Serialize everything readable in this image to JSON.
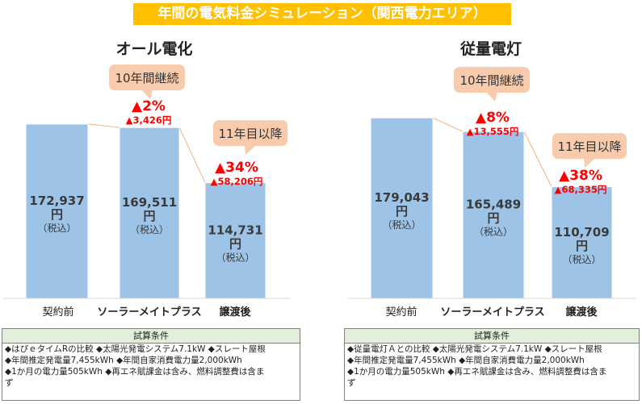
{
  "title": "年間の電気料金シミュレーション（関西電力エリア）",
  "colors": {
    "bar": "#9dc3e6",
    "bar_stroke": "#ffffff",
    "callout": "#f8cbad",
    "accent": "#ff0000",
    "title_bg": "#ffc000",
    "cond_head": "#e2efda"
  },
  "chart_data": [
    {
      "type": "bar",
      "title": "オール電化",
      "categories": [
        "契約前",
        "ソーラーメイトプラス",
        "譲渡後"
      ],
      "values": [
        172937,
        169511,
        114731
      ],
      "value_labels": [
        "172,937",
        "169,511",
        "114,731"
      ],
      "unit": "円",
      "tax_note": "（税込）",
      "callouts": [
        "10年間継続",
        "11年目以降"
      ],
      "reductions": [
        {
          "percent": "▲2%",
          "amount": "▲3,426円"
        },
        {
          "percent": "▲34%",
          "amount": "▲58,206円"
        }
      ]
    },
    {
      "type": "bar",
      "title": "従量電灯",
      "categories": [
        "契約前",
        "ソーラーメイトプラス",
        "譲渡後"
      ],
      "values": [
        179043,
        165489,
        110709
      ],
      "value_labels": [
        "179,043",
        "165,489",
        "110,709"
      ],
      "unit": "円",
      "tax_note": "（税込）",
      "callouts": [
        "10年間継続",
        "11年目以降"
      ],
      "reductions": [
        {
          "percent": "▲8%",
          "amount": "▲13,555円"
        },
        {
          "percent": "▲38%",
          "amount": "▲68,335円"
        }
      ]
    }
  ],
  "conditions": [
    {
      "header": "試算条件",
      "lines": [
        "◆はぴｅタイムRの比較 ◆太陽光発電システム7.1kW ◆スレート屋根",
        "◆年間推定発電量7,455kWh ◆年間自家消費電力量2,000kWh",
        "◆1か月の電力量505kWh ◆再エネ賦課金は含み、燃料調整費は含ま",
        "ず"
      ]
    },
    {
      "header": "試算条件",
      "lines": [
        "◆従量電灯Ａとの比較 ◆太陽光発電システム7.1kW ◆スレート屋根",
        "◆年間推定発電量7,455kWh ◆年間自家消費電力量2,000kWh",
        "◆1か月の電力量505kWh ◆再エネ賦課金は含み、燃料調整費は含ま",
        "ず"
      ]
    }
  ]
}
